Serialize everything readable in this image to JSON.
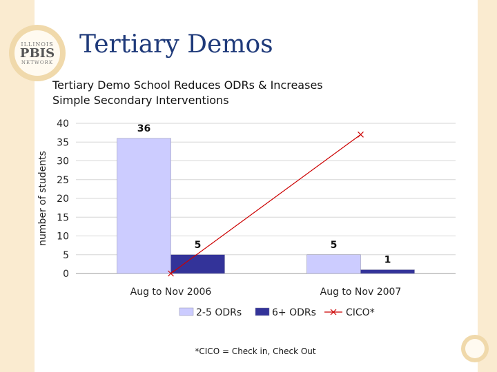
{
  "slide": {
    "title": "Tertiary Demos",
    "logo": {
      "top": "ILLINOIS",
      "middle": "PBIS",
      "bottom": "NETWORK"
    },
    "footnote": "*CICO = Check in, Check Out"
  },
  "chart_data": {
    "type": "bar",
    "title_lines": [
      "Tertiary Demo School Reduces ODRs & Increases",
      "Simple Secondary Interventions"
    ],
    "ylabel": "number of students",
    "xlabel": "",
    "categories": [
      "Aug to Nov 2006",
      "Aug to Nov 2007"
    ],
    "ylim": [
      0,
      40
    ],
    "yticks": [
      0,
      5,
      10,
      15,
      20,
      25,
      30,
      35,
      40
    ],
    "grid": true,
    "legend_position": "bottom",
    "series": [
      {
        "name": "2-5 ODRs",
        "type": "bar",
        "values": [
          36,
          5
        ],
        "labels": [
          "36",
          "5"
        ],
        "color": "#ccccff"
      },
      {
        "name": "6+ ODRs",
        "type": "bar",
        "values": [
          5,
          1
        ],
        "labels": [
          "5",
          "1"
        ],
        "color": "#333399"
      },
      {
        "name": "CICO*",
        "type": "line",
        "marker": "x",
        "values": [
          0,
          37
        ],
        "labels": [],
        "color": "#cc0000"
      }
    ]
  }
}
